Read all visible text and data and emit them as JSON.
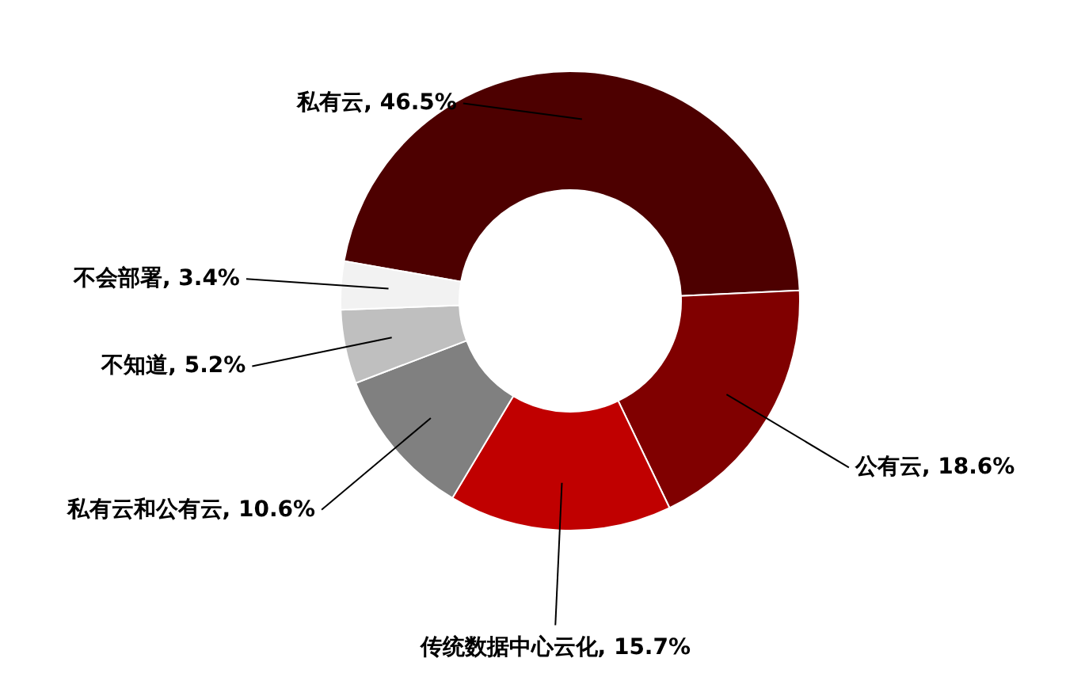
{
  "chart_data": {
    "type": "donut",
    "categories": [
      "私有云",
      "公有云",
      "传统数据中心云化",
      "私有云和公有云",
      "不知道",
      "不会部署"
    ],
    "values": [
      46.5,
      18.6,
      15.7,
      10.6,
      5.2,
      3.4
    ],
    "colors": [
      "#4d0000",
      "#800000",
      "#c00000",
      "#808080",
      "#bfbfbf",
      "#f2f2f2"
    ],
    "value_labels": [
      "46.5%",
      "18.6%",
      "15.7%",
      "10.6%",
      "5.2%",
      "3.4%"
    ]
  }
}
